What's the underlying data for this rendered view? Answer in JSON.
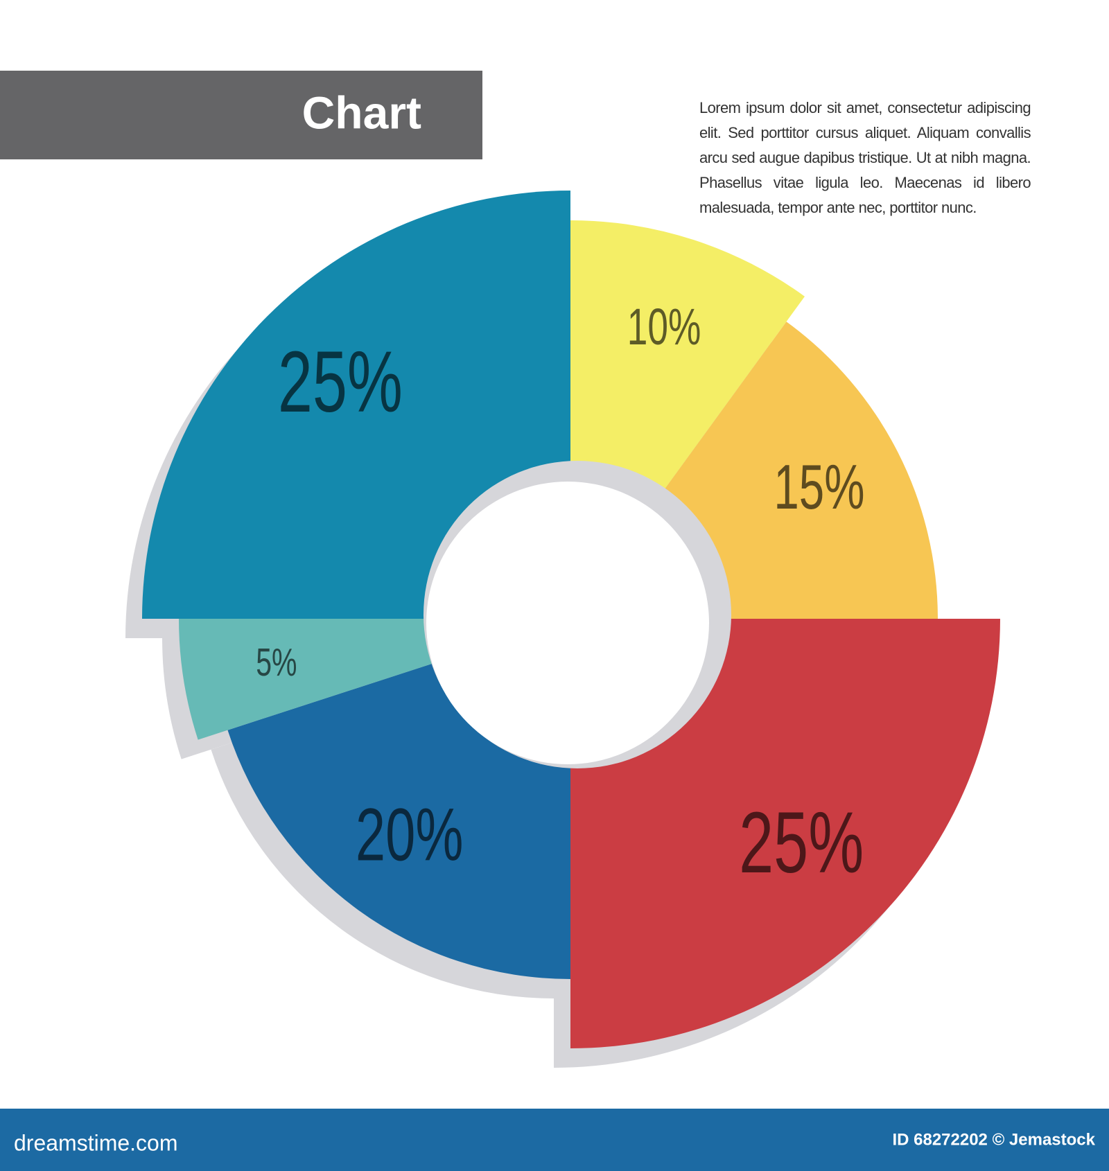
{
  "title": "Chart",
  "paragraph": "Lorem ipsum dolor sit amet, consectetur adipiscing elit. Sed porttitor cursus aliquet. Aliquam convallis arcu sed augue dapibus tristique. Ut at nibh magna. Phasellus vitae ligula leo. Maecenas id libero malesuada, tempor ante nec, porttitor nunc.",
  "chart_data": {
    "type": "pie",
    "categories": [
      null,
      null,
      null,
      null,
      null,
      null
    ],
    "values": [
      10,
      15,
      25,
      20,
      5,
      25
    ],
    "value_labels": [
      "10%",
      "15%",
      "25%",
      "20%",
      "5%",
      "25%"
    ],
    "colors": [
      "#f4ee66",
      "#f7c653",
      "#cb3d43",
      "#1b6aa3",
      "#66bab6",
      "#1489ad"
    ]
  },
  "footer": {
    "site": "dreamstime.com",
    "id": "ID 68272202 © Jemastock"
  }
}
